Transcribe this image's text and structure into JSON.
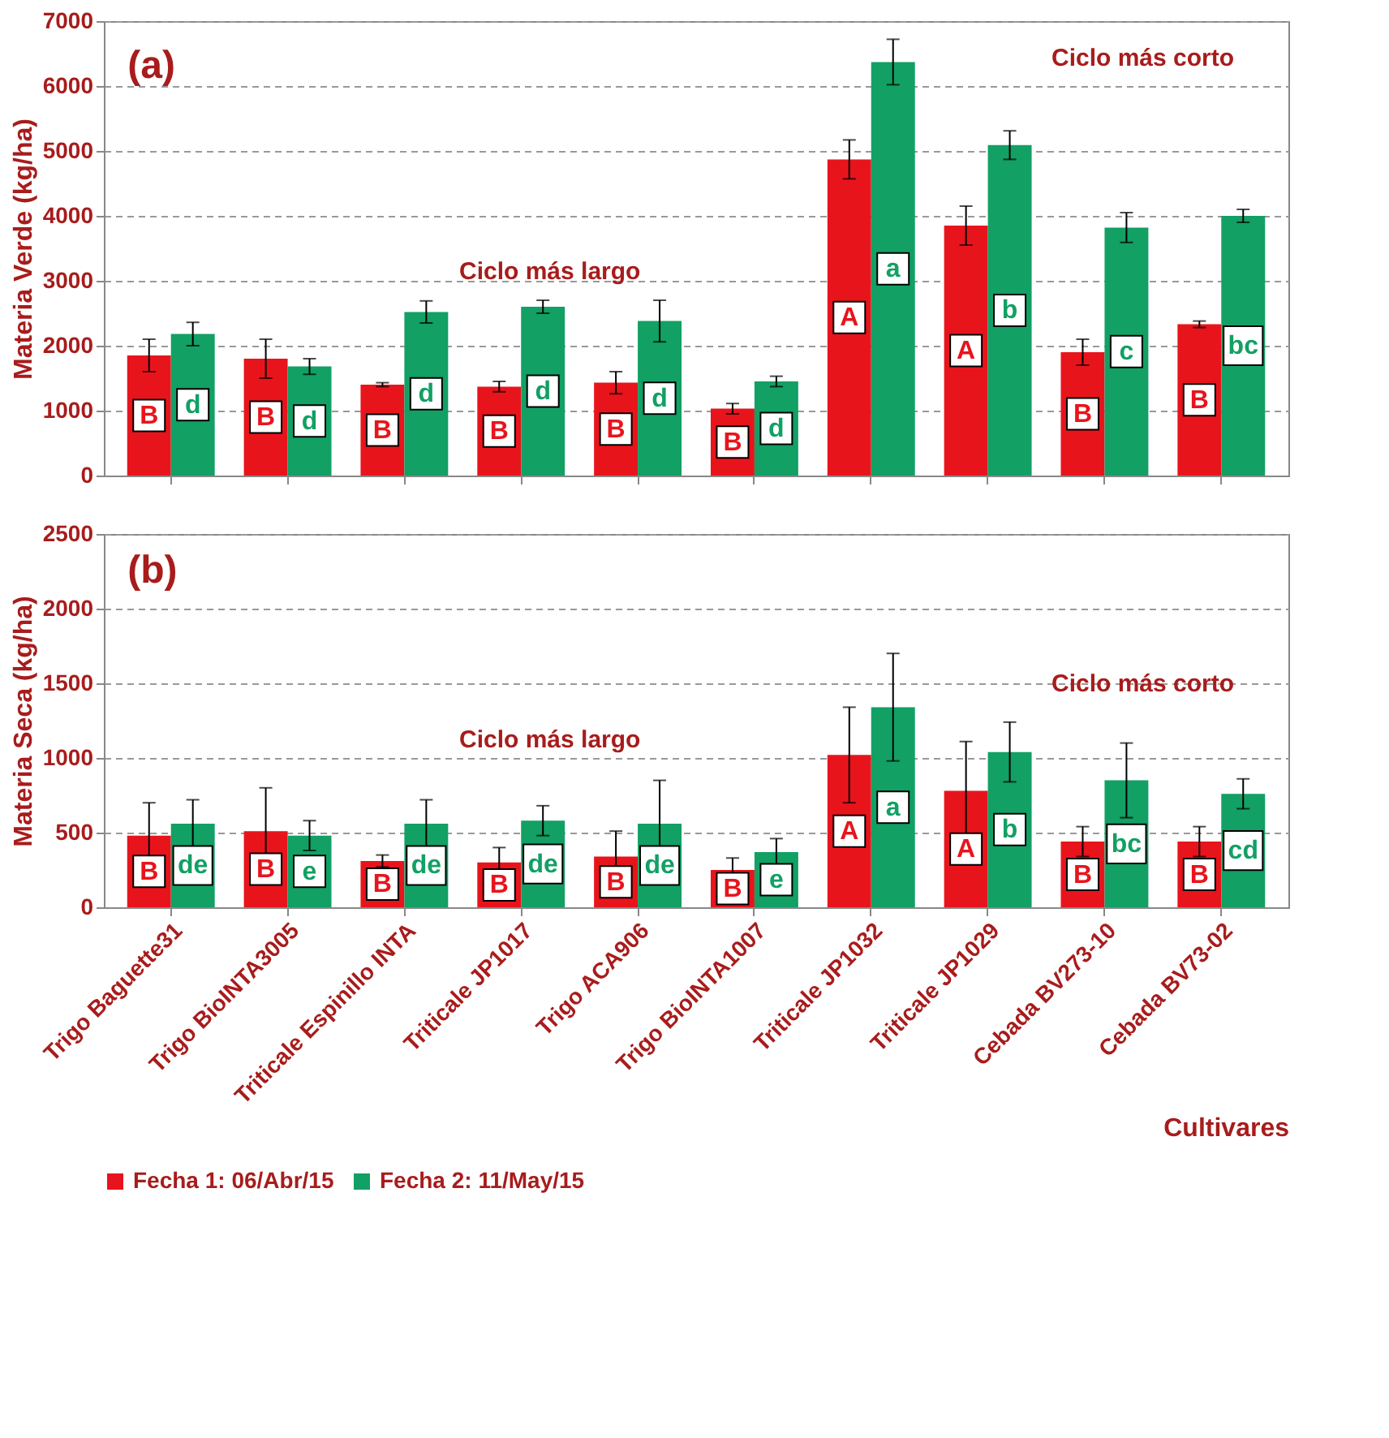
{
  "chart_data": [
    {
      "type": "bar",
      "ylabel": "Materia Verde (kg/ha)",
      "categories": [
        null,
        null,
        null,
        null,
        null,
        null,
        null,
        null,
        null,
        null
      ],
      "series": [
        {
          "name": "Fecha 1: 06/Abr/15",
          "color": "#e8141c",
          "values": [
            1850,
            1800,
            1400,
            1370,
            1430,
            1030,
            4870,
            3850,
            1900,
            2330
          ],
          "errors": [
            250,
            300,
            30,
            80,
            170,
            80,
            300,
            300,
            200,
            50
          ],
          "value_labels": [
            "B",
            "B",
            "B",
            "B",
            "B",
            "B",
            "A",
            "A",
            "B",
            "B"
          ]
        },
        {
          "name": "Fecha 2: 11/May/15",
          "color": "#12a064",
          "values": [
            2180,
            1680,
            2520,
            2600,
            2380,
            1450,
            6370,
            5090,
            3820,
            4000
          ],
          "errors": [
            180,
            120,
            170,
            100,
            320,
            80,
            350,
            220,
            230,
            100
          ],
          "value_labels": [
            "d",
            "d",
            "d",
            "d",
            "d",
            "d",
            "a",
            "b",
            "c",
            "bc"
          ]
        }
      ],
      "ylim": [
        0,
        7000
      ],
      "yticks": [
        0,
        1000,
        2000,
        3000,
        4000,
        5000,
        6000,
        7000
      ],
      "grid": "y",
      "tick_labels": "y",
      "legend": "bottom",
      "annotations": [
        "(a)",
        "Ciclo más largo",
        "Ciclo más corto"
      ]
    },
    {
      "type": "bar",
      "ylabel": "Materia Seca (kg/ha)",
      "xlabel": "Cultivares",
      "categories": [
        "Trigo Baguette31",
        "Trigo BioINTA3005",
        "Triticale Espinillo INTA",
        "Triticale JP1017",
        "Trigo ACA906",
        "Trigo BioINTA1007",
        "Triticale JP1032",
        "Triticale JP1029",
        "Cebada BV273-10",
        "Cebada BV73-02"
      ],
      "series": [
        {
          "name": "Fecha 1: 06/Abr/15",
          "color": "#e8141c",
          "values": [
            480,
            510,
            310,
            300,
            340,
            250,
            1020,
            780,
            440,
            440
          ],
          "errors": [
            220,
            290,
            40,
            100,
            170,
            80,
            320,
            330,
            100,
            100
          ],
          "value_labels": [
            "B",
            "B",
            "B",
            "B",
            "B",
            "B",
            "A",
            "A",
            "B",
            "B"
          ]
        },
        {
          "name": "Fecha 2: 11/May/15",
          "color": "#12a064",
          "values": [
            560,
            480,
            560,
            580,
            560,
            370,
            1340,
            1040,
            850,
            760
          ],
          "errors": [
            160,
            100,
            160,
            100,
            290,
            90,
            360,
            200,
            250,
            100
          ],
          "value_labels": [
            "de",
            "e",
            "de",
            "de",
            "de",
            "e",
            "a",
            "b",
            "bc",
            "cd"
          ]
        }
      ],
      "ylim": [
        0,
        2500
      ],
      "yticks": [
        0,
        500,
        1000,
        1500,
        2000,
        2500
      ],
      "grid": "y",
      "legend": "bottom",
      "annotations": [
        "(b)",
        "Ciclo más largo",
        "Ciclo más corto"
      ]
    }
  ]
}
